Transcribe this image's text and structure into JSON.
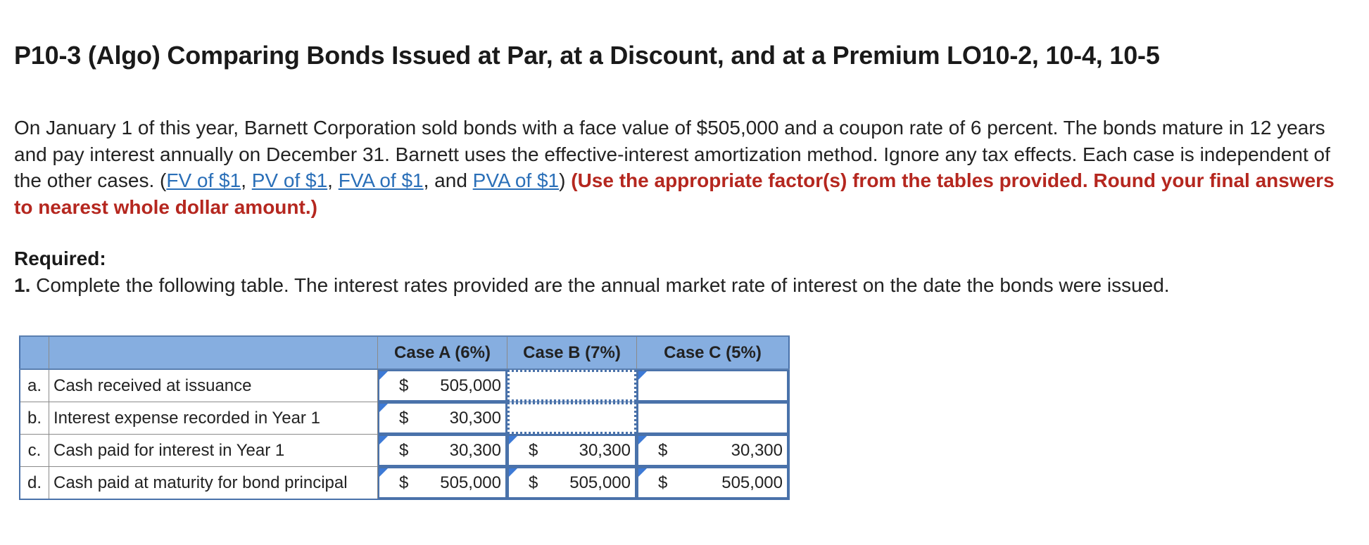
{
  "title": "P10-3 (Algo) Comparing Bonds Issued at Par, at a Discount, and at a Premium LO10-2, 10-4, 10-5",
  "intro": {
    "text1": "On January 1 of this year, Barnett Corporation sold bonds with a face value of $505,000 and a coupon rate of 6 percent. The bonds mature in 12 years and pay interest annually on December 31. Barnett uses the effective-interest amortization method. Ignore any tax effects. Each case is independent of the other cases. (",
    "links": [
      "FV of $1",
      "PV of $1",
      "FVA of $1",
      "PVA of $1"
    ],
    "sep1": ", ",
    "sep2": ", ",
    "sep3": ", and ",
    "text_close": ") ",
    "instruction": "(Use the appropriate factor(s) from the tables provided. Round your final answers to nearest whole dollar amount.)"
  },
  "required": {
    "heading": "Required:",
    "item_num": "1.",
    "item_text": " Complete the following table. The interest rates provided are the annual market rate of interest on the date the bonds were issued."
  },
  "table": {
    "headers": [
      "",
      "",
      "Case A (6%)",
      "Case B (7%)",
      "Case C (5%)"
    ],
    "currency": "$",
    "rows": [
      {
        "letter": "a.",
        "label": "Cash received at issuance",
        "a": "505,000",
        "b": "",
        "c": ""
      },
      {
        "letter": "b.",
        "label": "Interest expense recorded in Year 1",
        "a": "30,300",
        "b": "",
        "c": ""
      },
      {
        "letter": "c.",
        "label": "Cash paid for interest in Year 1",
        "a": "30,300",
        "b": "30,300",
        "c": "30,300"
      },
      {
        "letter": "d.",
        "label": "Cash paid at maturity for bond principal",
        "a": "505,000",
        "b": "505,000",
        "c": "505,000"
      }
    ]
  },
  "colors": {
    "header_bg": "#86aee0",
    "link": "#2a6fb8",
    "instruction_red": "#b5271f",
    "input_border": "#4a72aa"
  }
}
